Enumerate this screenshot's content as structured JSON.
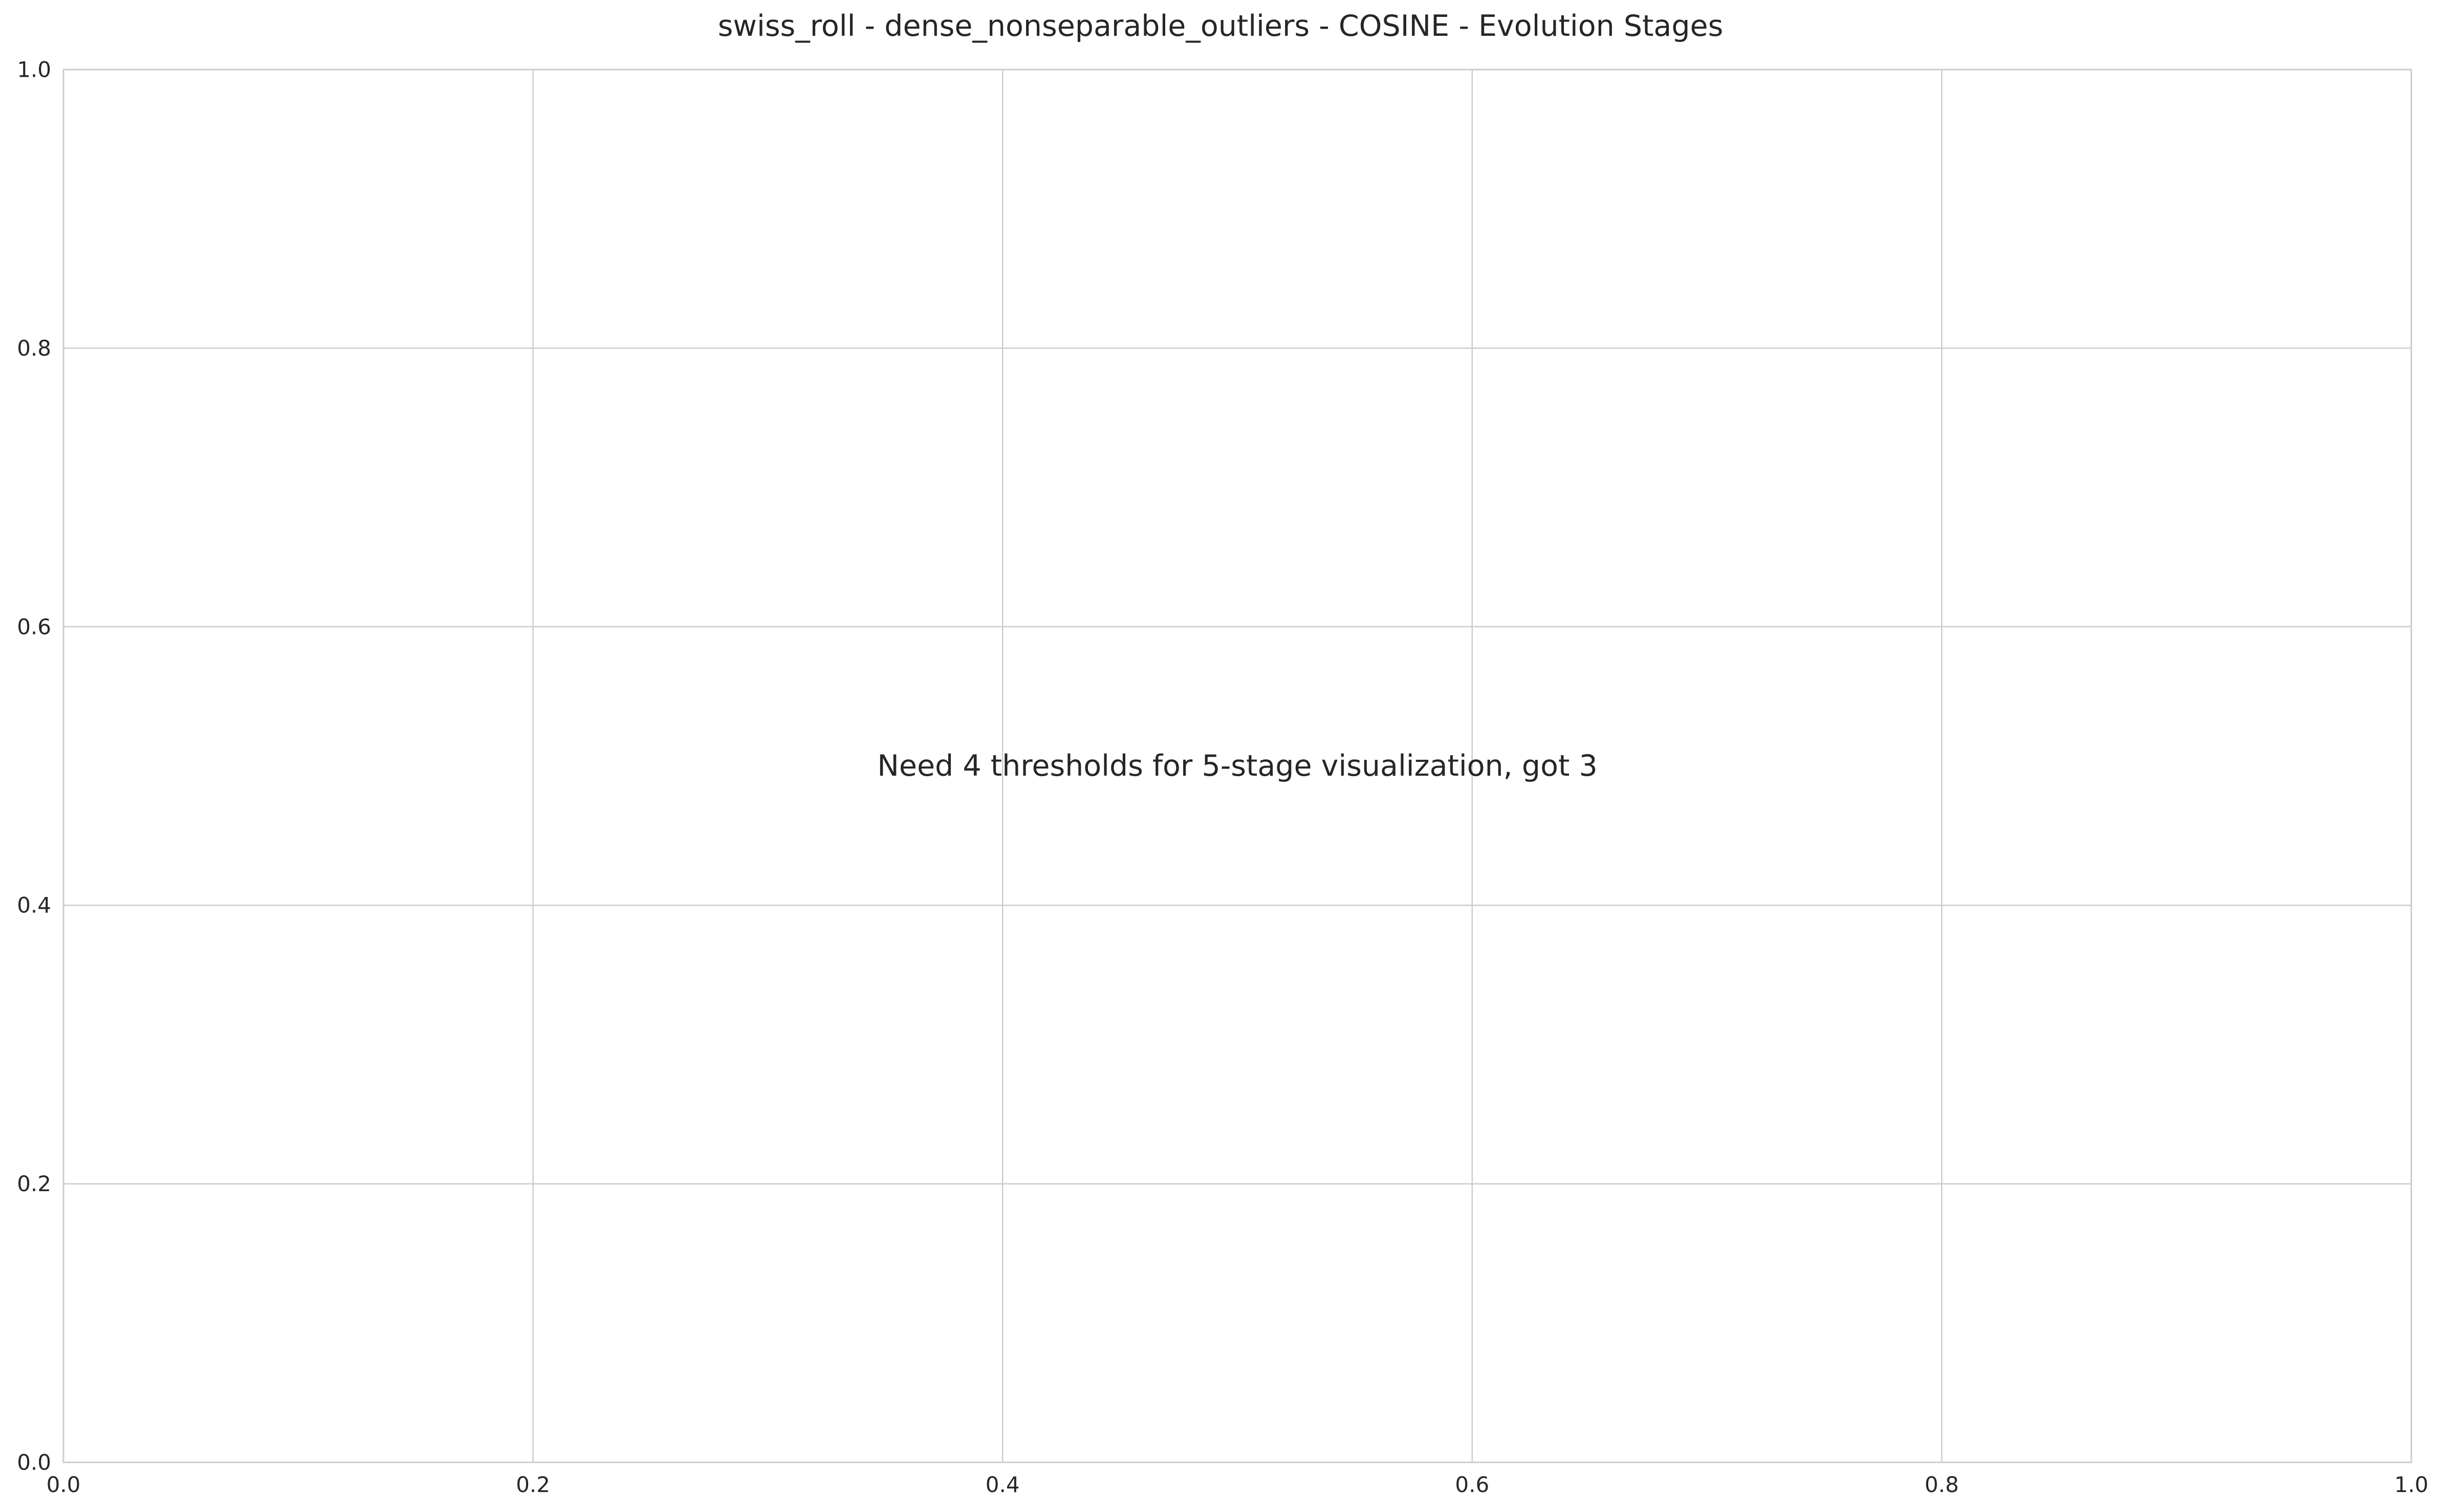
{
  "chart_data": {
    "type": "scatter",
    "title": "swiss_roll - dense_nonseparable_outliers - COSINE - Evolution Stages",
    "xlabel": "",
    "ylabel": "",
    "xlim": [
      0.0,
      1.0
    ],
    "ylim": [
      0.0,
      1.0
    ],
    "grid": true,
    "series": [],
    "xticks": [
      {
        "value": 0.0,
        "label": "0.0"
      },
      {
        "value": 0.2,
        "label": "0.2"
      },
      {
        "value": 0.4,
        "label": "0.4"
      },
      {
        "value": 0.6,
        "label": "0.6"
      },
      {
        "value": 0.8,
        "label": "0.8"
      },
      {
        "value": 1.0,
        "label": "1.0"
      }
    ],
    "yticks": [
      {
        "value": 0.0,
        "label": "0.0"
      },
      {
        "value": 0.2,
        "label": "0.2"
      },
      {
        "value": 0.4,
        "label": "0.4"
      },
      {
        "value": 0.6,
        "label": "0.6"
      },
      {
        "value": 0.8,
        "label": "0.8"
      },
      {
        "value": 1.0,
        "label": "1.0"
      }
    ],
    "annotations": [
      {
        "text": "Need 4 thresholds for 5-stage visualization, got 3",
        "x": 0.5,
        "y": 0.5
      }
    ],
    "colors": {
      "grid": "#cccccc",
      "text": "#262626",
      "background": "#ffffff"
    }
  }
}
